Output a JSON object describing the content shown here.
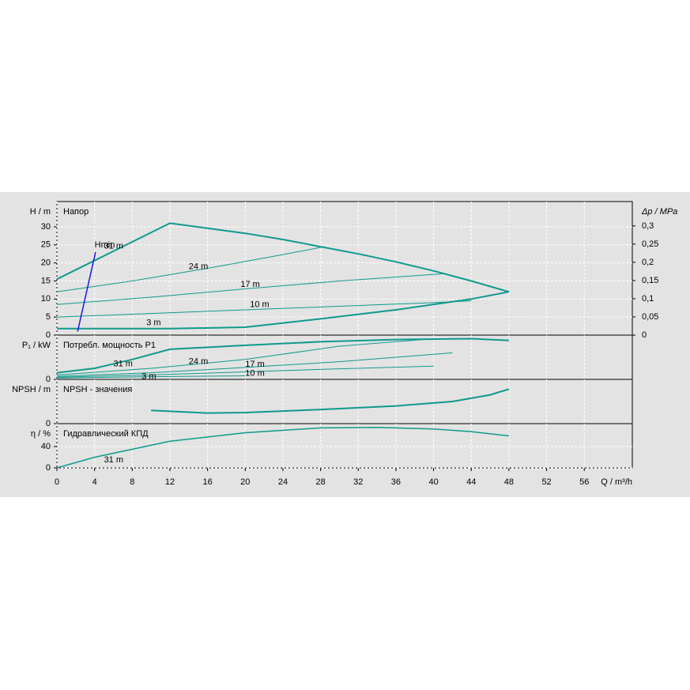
{
  "chart_data": [
    {
      "type": "line",
      "title": "Напор",
      "ylabel": "H / m",
      "y2label": "Δp / MPa",
      "xlim": [
        0,
        61.1
      ],
      "ylim": [
        0,
        37
      ],
      "yticks": [
        0,
        5,
        10,
        15,
        20,
        25,
        30
      ],
      "y2lim": [
        0,
        0.367
      ],
      "y2ticks": [
        0,
        {
          "value": 0.05,
          "label": "0,05"
        },
        {
          "value": 0.1,
          "label": "0,1"
        },
        {
          "value": 0.15,
          "label": "0,15"
        },
        {
          "value": 0.2,
          "label": "0,2"
        },
        {
          "value": 0.25,
          "label": "0,25"
        },
        {
          "value": 0.3,
          "label": "0,3"
        }
      ],
      "grid": true,
      "series": [
        {
          "name": "31 m",
          "color": "#0f9a8c",
          "x": [
            0,
            12,
            16,
            20,
            24,
            28,
            32,
            36,
            40,
            44,
            48
          ],
          "values": [
            15.5,
            31,
            29.6,
            28.2,
            26.5,
            24.5,
            22.5,
            20.3,
            17.8,
            15,
            12
          ]
        },
        {
          "name": "24 m",
          "color": "#0f9a8c",
          "x": [
            0,
            8,
            16,
            24,
            28
          ],
          "values": [
            12,
            15,
            18.5,
            22.3,
            24.3
          ]
        },
        {
          "name": "17 m",
          "color": "#0f9a8c",
          "x": [
            0,
            10,
            20,
            30,
            41
          ],
          "values": [
            8.5,
            10.5,
            12.8,
            15,
            17
          ]
        },
        {
          "name": "10 m",
          "color": "#0f9a8c",
          "x": [
            0,
            10,
            20,
            30,
            40,
            44
          ],
          "values": [
            5,
            6,
            7,
            8,
            9,
            9.5
          ]
        },
        {
          "name": "3 m",
          "color": "#0f9a8c",
          "x": [
            0,
            12,
            20,
            28,
            36,
            44,
            48
          ],
          "values": [
            1.8,
            1.8,
            2.2,
            4.5,
            7,
            10,
            12
          ]
        },
        {
          "name": "Hmin",
          "color": "#1a1adc",
          "x": [
            2.2,
            4.1
          ],
          "values": [
            1,
            23
          ]
        }
      ]
    },
    {
      "type": "line",
      "title": "Потребл. мощность P1",
      "ylabel": "P₁ / kW",
      "xlim": [
        0,
        61.1
      ],
      "ylim": [
        0,
        1
      ],
      "yticks": [
        0
      ],
      "grid": true,
      "series": [
        {
          "name": "31 m",
          "color": "#0f9a8c",
          "x": [
            0,
            4,
            8,
            12,
            20,
            28,
            36,
            44,
            48
          ],
          "values": [
            0.15,
            0.25,
            0.45,
            0.68,
            0.77,
            0.85,
            0.9,
            0.92,
            0.88
          ]
        },
        {
          "name": "24 m",
          "color": "#0f9a8c",
          "x": [
            0,
            10,
            20,
            30,
            40
          ],
          "values": [
            0.1,
            0.25,
            0.45,
            0.75,
            0.92
          ]
        },
        {
          "name": "17 m",
          "color": "#0f9a8c",
          "x": [
            0,
            10,
            20,
            30,
            42
          ],
          "values": [
            0.07,
            0.15,
            0.27,
            0.4,
            0.6
          ]
        },
        {
          "name": "10 m",
          "color": "#0f9a8c",
          "x": [
            0,
            10,
            20,
            30,
            40
          ],
          "values": [
            0.05,
            0.1,
            0.17,
            0.24,
            0.3
          ]
        },
        {
          "name": "3 m",
          "color": "#0f9a8c",
          "x": [
            0,
            10,
            20
          ],
          "values": [
            0.03,
            0.06,
            0.08
          ]
        }
      ]
    },
    {
      "type": "line",
      "title": "NPSH - значения",
      "ylabel": "NPSH / m",
      "xlim": [
        0,
        61.1
      ],
      "ylim": [
        0,
        1
      ],
      "yticks": [
        0
      ],
      "grid": true,
      "series": [
        {
          "name": "NPSH",
          "color": "#0f9a8c",
          "x": [
            10,
            16,
            20,
            28,
            36,
            42,
            46,
            48
          ],
          "values": [
            0.3,
            0.24,
            0.25,
            0.32,
            0.4,
            0.5,
            0.65,
            0.78
          ]
        }
      ]
    },
    {
      "type": "line",
      "title": "Гидравлический КПД",
      "ylabel": "η / %",
      "xlabel": "Q / m³/h",
      "xlim": [
        0,
        61.1
      ],
      "ylim": [
        0,
        83
      ],
      "yticks": [
        0,
        40
      ],
      "grid": true,
      "xticks": [
        0,
        4,
        8,
        12,
        16,
        20,
        24,
        28,
        32,
        36,
        40,
        44,
        48,
        52,
        56
      ],
      "series": [
        {
          "name": "31 m",
          "color": "#0f9a8c",
          "x": [
            0,
            4,
            8,
            12,
            20,
            28,
            34,
            40,
            44,
            48
          ],
          "values": [
            0,
            20,
            35,
            50,
            66,
            75,
            76,
            73,
            68,
            60
          ]
        }
      ]
    }
  ]
}
